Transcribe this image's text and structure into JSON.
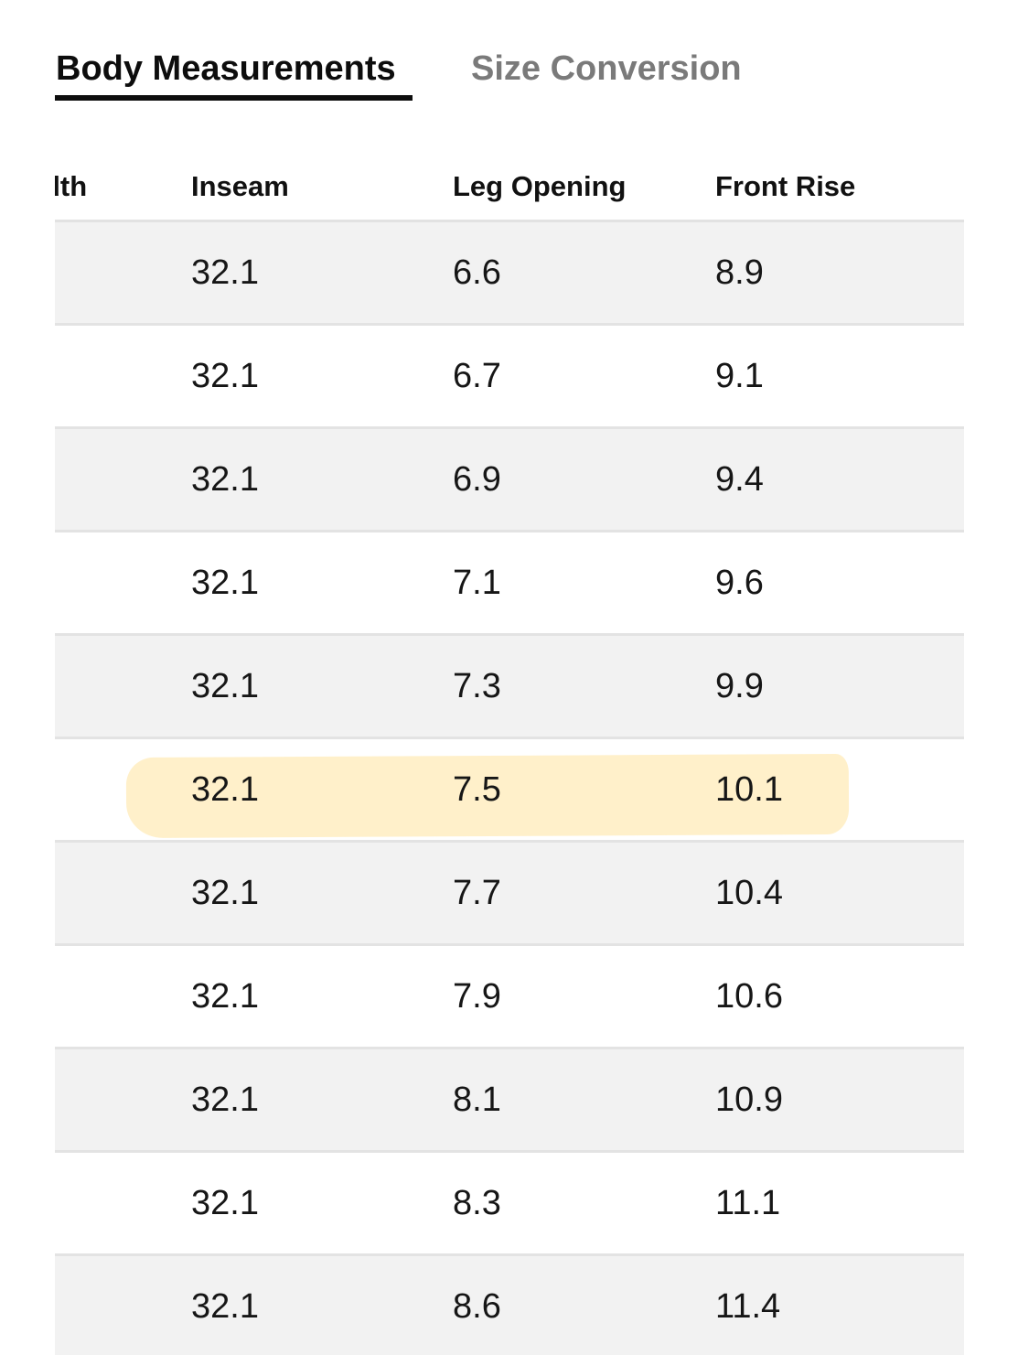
{
  "tabs": {
    "active_label": "Body Measurements",
    "inactive_label": "Size Conversion"
  },
  "table": {
    "headers": {
      "partial_col": "dth",
      "inseam": "Inseam",
      "leg_opening": "Leg Opening",
      "front_rise": "Front Rise"
    },
    "rows": [
      {
        "inseam": "32.1",
        "leg_opening": "6.6",
        "front_rise": "8.9",
        "highlighted": false
      },
      {
        "inseam": "32.1",
        "leg_opening": "6.7",
        "front_rise": "9.1",
        "highlighted": false
      },
      {
        "inseam": "32.1",
        "leg_opening": "6.9",
        "front_rise": "9.4",
        "highlighted": false
      },
      {
        "inseam": "32.1",
        "leg_opening": "7.1",
        "front_rise": "9.6",
        "highlighted": false
      },
      {
        "inseam": "32.1",
        "leg_opening": "7.3",
        "front_rise": "9.9",
        "highlighted": false
      },
      {
        "inseam": "32.1",
        "leg_opening": "7.5",
        "front_rise": "10.1",
        "highlighted": true
      },
      {
        "inseam": "32.1",
        "leg_opening": "7.7",
        "front_rise": "10.4",
        "highlighted": false
      },
      {
        "inseam": "32.1",
        "leg_opening": "7.9",
        "front_rise": "10.6",
        "highlighted": false
      },
      {
        "inseam": "32.1",
        "leg_opening": "8.1",
        "front_rise": "10.9",
        "highlighted": false
      },
      {
        "inseam": "32.1",
        "leg_opening": "8.3",
        "front_rise": "11.1",
        "highlighted": false
      },
      {
        "inseam": "32.1",
        "leg_opening": "8.6",
        "front_rise": "11.4",
        "highlighted": false
      }
    ]
  },
  "colors": {
    "row_shaded": "#f2f2f2",
    "row_plain": "#ffffff",
    "highlight_marker": "#ffefc7",
    "active_tab": "#0d0d0d",
    "inactive_tab": "#7a7a7a"
  }
}
